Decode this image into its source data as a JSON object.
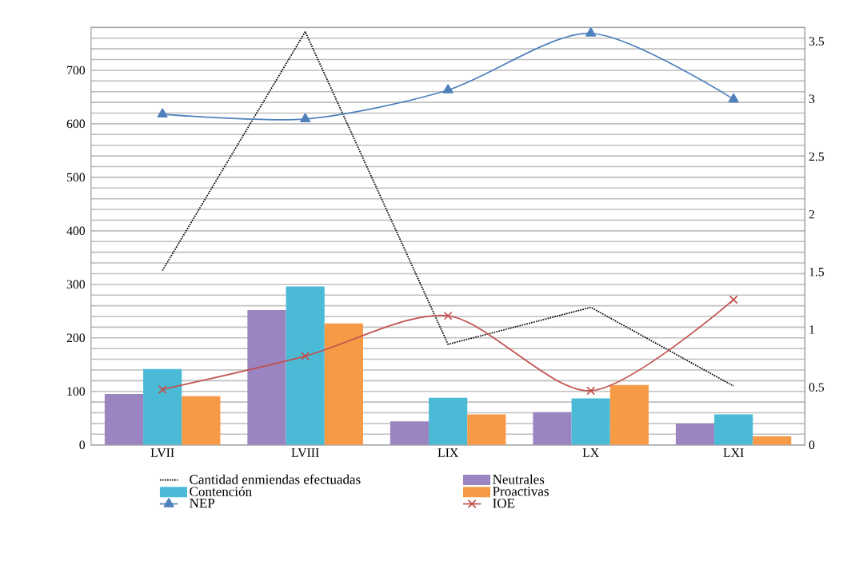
{
  "chart_data": {
    "type": "bar",
    "categories": [
      "LVII",
      "LVIII",
      "LIX",
      "LX",
      "LXI"
    ],
    "series": [
      {
        "name": "Cantidad enmiendas efectuadas",
        "type": "line",
        "color": "#000000",
        "line_style": "dotted",
        "marker": "none",
        "values": [
          326,
          772,
          188,
          257,
          110
        ]
      },
      {
        "name": "Neutrales",
        "color": "#9b85c0",
        "values": [
          95,
          252,
          44,
          61,
          40
        ]
      },
      {
        "name": "Contención",
        "color": "#4bbad6",
        "values": [
          142,
          296,
          88,
          87,
          57
        ]
      },
      {
        "name": "Proactivas",
        "color": "#f79a46",
        "values": [
          91,
          227,
          57,
          112,
          16
        ]
      },
      {
        "name": "NEP",
        "type": "line",
        "color": "#4f81bd",
        "marker": "triangle",
        "values": [
          618,
          609,
          663,
          769,
          646
        ]
      },
      {
        "name": "IOE",
        "type": "line",
        "color": "#c0504d",
        "marker": "cross",
        "axis": "y2",
        "values": [
          0.48,
          0.77,
          1.12,
          0.47,
          1.26
        ]
      }
    ],
    "ylim": [
      0,
      780
    ],
    "yticks": [
      0,
      {
        "value": 20,
        "label": null
      },
      {
        "value": 40,
        "label": null
      },
      {
        "value": 60,
        "label": null
      },
      {
        "value": 80,
        "label": null
      },
      100,
      {
        "value": 120,
        "label": null
      },
      {
        "value": 140,
        "label": null
      },
      {
        "value": 160,
        "label": null
      },
      {
        "value": 180,
        "label": null
      },
      200,
      {
        "value": 220,
        "label": null
      },
      {
        "value": 240,
        "label": null
      },
      {
        "value": 260,
        "label": null
      },
      {
        "value": 280,
        "label": null
      },
      300,
      {
        "value": 320,
        "label": null
      },
      {
        "value": 340,
        "label": null
      },
      {
        "value": 360,
        "label": null
      },
      {
        "value": 380,
        "label": null
      },
      400,
      {
        "value": 420,
        "label": null
      },
      {
        "value": 440,
        "label": null
      },
      {
        "value": 460,
        "label": null
      },
      {
        "value": 480,
        "label": null
      },
      500,
      {
        "value": 520,
        "label": null
      },
      {
        "value": 540,
        "label": null
      },
      {
        "value": 560,
        "label": null
      },
      {
        "value": 580,
        "label": null
      },
      600,
      {
        "value": 620,
        "label": null
      },
      {
        "value": 640,
        "label": null
      },
      {
        "value": 660,
        "label": null
      },
      {
        "value": 680,
        "label": null
      },
      700,
      {
        "value": 720,
        "label": null
      },
      {
        "value": 740,
        "label": null
      },
      {
        "value": 760,
        "label": null
      },
      {
        "value": 780,
        "label": null
      }
    ],
    "y2lim": [
      0,
      3.62
    ],
    "y2ticks": [
      0,
      0.5,
      1,
      1.5,
      2,
      2.5,
      3,
      3.5
    ],
    "grid": "y",
    "legend": "bottom"
  }
}
